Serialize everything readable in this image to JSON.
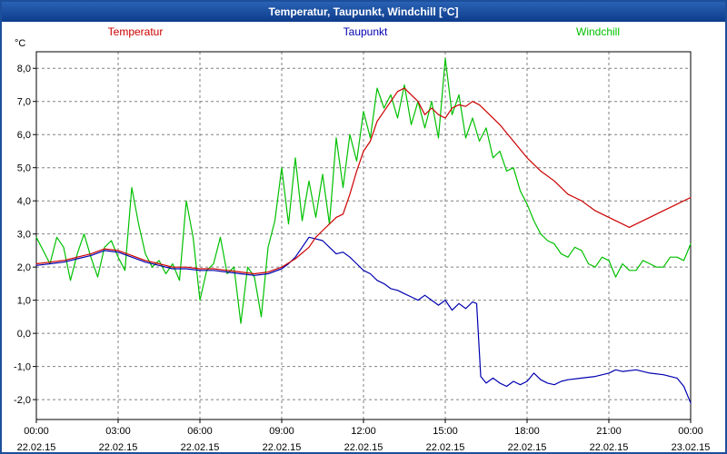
{
  "window": {
    "title": "Temperatur, Taupunkt, Windchill [°C]"
  },
  "colors": {
    "title_bar": "#0d3c8c",
    "frame": "#1c4f9b",
    "temperatur": "#cc0000",
    "taupunkt": "#0000b0",
    "windchill": "#00c000",
    "grid": "#808080",
    "axis": "#000000"
  },
  "legend": {
    "temperatur": "Temperatur",
    "taupunkt": "Taupunkt",
    "windchill": "Windchill"
  },
  "chart_data": {
    "type": "line",
    "title": "Temperatur, Taupunkt, Windchill [°C]",
    "y_unit_label": "°C",
    "ylim": [
      -2.6,
      8.5
    ],
    "grid": true,
    "legend_position": "top",
    "y_ticks": [
      -2,
      -1,
      0,
      1,
      2,
      3,
      4,
      5,
      6,
      7,
      8
    ],
    "y_tick_labels": [
      "-2,0",
      "-1,0",
      "0,0",
      "1,0",
      "2,0",
      "3,0",
      "4,0",
      "5,0",
      "6,0",
      "7,0",
      "8,0"
    ],
    "x_ticks_hours": [
      0,
      3,
      6,
      9,
      12,
      15,
      18,
      21,
      24
    ],
    "x_tick_labels": [
      "00:00",
      "03:00",
      "06:00",
      "09:00",
      "12:00",
      "15:00",
      "18:00",
      "21:00",
      "00:00"
    ],
    "x_date_labels": [
      "22.02.15",
      "22.02.15",
      "22.02.15",
      "22.02.15",
      "22.02.15",
      "22.02.15",
      "22.02.15",
      "22.02.15",
      "23.02.15"
    ],
    "series": [
      {
        "name": "Windchill",
        "color": "#00c000",
        "points": [
          [
            0,
            2.9
          ],
          [
            0.25,
            2.5
          ],
          [
            0.5,
            2.1
          ],
          [
            0.75,
            2.9
          ],
          [
            1,
            2.6
          ],
          [
            1.25,
            1.6
          ],
          [
            1.5,
            2.4
          ],
          [
            1.75,
            3.0
          ],
          [
            2,
            2.3
          ],
          [
            2.25,
            1.7
          ],
          [
            2.5,
            2.6
          ],
          [
            2.75,
            2.8
          ],
          [
            3,
            2.3
          ],
          [
            3.25,
            1.9
          ],
          [
            3.5,
            4.4
          ],
          [
            3.75,
            3.3
          ],
          [
            4,
            2.4
          ],
          [
            4.25,
            2.0
          ],
          [
            4.5,
            2.2
          ],
          [
            4.75,
            1.8
          ],
          [
            5,
            2.1
          ],
          [
            5.25,
            1.6
          ],
          [
            5.5,
            4.0
          ],
          [
            5.75,
            2.9
          ],
          [
            6,
            1.0
          ],
          [
            6.25,
            1.9
          ],
          [
            6.5,
            2.1
          ],
          [
            6.75,
            2.9
          ],
          [
            7,
            1.8
          ],
          [
            7.25,
            2.0
          ],
          [
            7.5,
            0.3
          ],
          [
            7.75,
            2.0
          ],
          [
            8,
            1.7
          ],
          [
            8.25,
            0.5
          ],
          [
            8.5,
            2.6
          ],
          [
            8.75,
            3.4
          ],
          [
            9,
            5.0
          ],
          [
            9.25,
            3.3
          ],
          [
            9.5,
            5.3
          ],
          [
            9.75,
            3.4
          ],
          [
            10,
            4.6
          ],
          [
            10.25,
            3.5
          ],
          [
            10.5,
            4.8
          ],
          [
            10.75,
            3.3
          ],
          [
            11,
            5.9
          ],
          [
            11.25,
            4.4
          ],
          [
            11.5,
            6.0
          ],
          [
            11.75,
            5.2
          ],
          [
            12,
            6.7
          ],
          [
            12.25,
            5.9
          ],
          [
            12.5,
            7.4
          ],
          [
            12.75,
            6.8
          ],
          [
            13,
            7.2
          ],
          [
            13.25,
            6.5
          ],
          [
            13.5,
            7.5
          ],
          [
            13.75,
            6.3
          ],
          [
            14,
            7.0
          ],
          [
            14.25,
            6.2
          ],
          [
            14.5,
            7.0
          ],
          [
            14.75,
            5.9
          ],
          [
            15,
            8.3
          ],
          [
            15.25,
            6.6
          ],
          [
            15.5,
            7.2
          ],
          [
            15.75,
            5.9
          ],
          [
            16,
            6.5
          ],
          [
            16.25,
            5.8
          ],
          [
            16.5,
            6.2
          ],
          [
            16.75,
            5.3
          ],
          [
            17,
            5.5
          ],
          [
            17.25,
            4.9
          ],
          [
            17.5,
            5.0
          ],
          [
            17.75,
            4.3
          ],
          [
            18,
            3.9
          ],
          [
            18.25,
            3.4
          ],
          [
            18.5,
            3.0
          ],
          [
            18.75,
            2.8
          ],
          [
            19,
            2.7
          ],
          [
            19.25,
            2.4
          ],
          [
            19.5,
            2.3
          ],
          [
            19.75,
            2.6
          ],
          [
            20,
            2.5
          ],
          [
            20.25,
            2.1
          ],
          [
            20.5,
            2.0
          ],
          [
            20.75,
            2.3
          ],
          [
            21,
            2.2
          ],
          [
            21.25,
            1.7
          ],
          [
            21.5,
            2.1
          ],
          [
            21.75,
            1.9
          ],
          [
            22,
            1.9
          ],
          [
            22.25,
            2.2
          ],
          [
            22.5,
            2.1
          ],
          [
            22.75,
            2.0
          ],
          [
            23,
            2.0
          ],
          [
            23.25,
            2.3
          ],
          [
            23.5,
            2.3
          ],
          [
            23.75,
            2.2
          ],
          [
            24,
            2.7
          ]
        ]
      },
      {
        "name": "Taupunkt",
        "color": "#0000b0",
        "points": [
          [
            0,
            2.05
          ],
          [
            0.5,
            2.1
          ],
          [
            1,
            2.15
          ],
          [
            1.5,
            2.25
          ],
          [
            2,
            2.35
          ],
          [
            2.5,
            2.5
          ],
          [
            3,
            2.45
          ],
          [
            3.5,
            2.3
          ],
          [
            4,
            2.15
          ],
          [
            4.5,
            2.05
          ],
          [
            5,
            1.95
          ],
          [
            5.5,
            1.95
          ],
          [
            6,
            1.9
          ],
          [
            6.5,
            1.9
          ],
          [
            7,
            1.85
          ],
          [
            7.5,
            1.8
          ],
          [
            8,
            1.75
          ],
          [
            8.5,
            1.8
          ],
          [
            9,
            1.95
          ],
          [
            9.25,
            2.1
          ],
          [
            9.5,
            2.3
          ],
          [
            9.75,
            2.6
          ],
          [
            10,
            2.9
          ],
          [
            10.25,
            2.85
          ],
          [
            10.5,
            2.8
          ],
          [
            10.75,
            2.6
          ],
          [
            11,
            2.4
          ],
          [
            11.25,
            2.45
          ],
          [
            11.5,
            2.3
          ],
          [
            11.75,
            2.1
          ],
          [
            12,
            1.9
          ],
          [
            12.25,
            1.8
          ],
          [
            12.5,
            1.6
          ],
          [
            12.75,
            1.5
          ],
          [
            13,
            1.35
          ],
          [
            13.25,
            1.3
          ],
          [
            13.5,
            1.2
          ],
          [
            13.75,
            1.1
          ],
          [
            14,
            1.0
          ],
          [
            14.25,
            1.15
          ],
          [
            14.5,
            1.0
          ],
          [
            14.75,
            0.85
          ],
          [
            15,
            1.0
          ],
          [
            15.25,
            0.7
          ],
          [
            15.5,
            0.9
          ],
          [
            15.75,
            0.75
          ],
          [
            16,
            0.95
          ],
          [
            16.15,
            0.9
          ],
          [
            16.3,
            -1.3
          ],
          [
            16.5,
            -1.5
          ],
          [
            16.75,
            -1.35
          ],
          [
            17,
            -1.5
          ],
          [
            17.25,
            -1.6
          ],
          [
            17.5,
            -1.45
          ],
          [
            17.75,
            -1.55
          ],
          [
            18,
            -1.45
          ],
          [
            18.25,
            -1.2
          ],
          [
            18.5,
            -1.4
          ],
          [
            18.75,
            -1.5
          ],
          [
            19,
            -1.55
          ],
          [
            19.25,
            -1.45
          ],
          [
            19.5,
            -1.4
          ],
          [
            20,
            -1.35
          ],
          [
            20.5,
            -1.3
          ],
          [
            21,
            -1.2
          ],
          [
            21.25,
            -1.1
          ],
          [
            21.5,
            -1.15
          ],
          [
            22,
            -1.1
          ],
          [
            22.5,
            -1.2
          ],
          [
            23,
            -1.25
          ],
          [
            23.5,
            -1.35
          ],
          [
            23.75,
            -1.6
          ],
          [
            24,
            -2.1
          ]
        ]
      },
      {
        "name": "Temperatur",
        "color": "#cc0000",
        "points": [
          [
            0,
            2.1
          ],
          [
            0.5,
            2.15
          ],
          [
            1,
            2.2
          ],
          [
            1.5,
            2.3
          ],
          [
            2,
            2.4
          ],
          [
            2.5,
            2.55
          ],
          [
            3,
            2.5
          ],
          [
            3.5,
            2.35
          ],
          [
            4,
            2.2
          ],
          [
            4.5,
            2.1
          ],
          [
            5,
            2.0
          ],
          [
            5.5,
            2.0
          ],
          [
            6,
            1.95
          ],
          [
            6.5,
            1.95
          ],
          [
            7,
            1.9
          ],
          [
            7.5,
            1.85
          ],
          [
            8,
            1.8
          ],
          [
            8.5,
            1.85
          ],
          [
            9,
            2.0
          ],
          [
            9.5,
            2.25
          ],
          [
            10,
            2.6
          ],
          [
            10.25,
            2.9
          ],
          [
            10.5,
            3.1
          ],
          [
            10.75,
            3.3
          ],
          [
            11,
            3.5
          ],
          [
            11.25,
            3.6
          ],
          [
            11.5,
            4.2
          ],
          [
            11.75,
            4.9
          ],
          [
            12,
            5.5
          ],
          [
            12.25,
            5.8
          ],
          [
            12.5,
            6.4
          ],
          [
            12.75,
            6.7
          ],
          [
            13,
            7.0
          ],
          [
            13.25,
            7.3
          ],
          [
            13.5,
            7.4
          ],
          [
            13.75,
            7.2
          ],
          [
            14,
            7.0
          ],
          [
            14.25,
            6.6
          ],
          [
            14.5,
            6.8
          ],
          [
            14.75,
            6.6
          ],
          [
            15,
            6.5
          ],
          [
            15.25,
            6.8
          ],
          [
            15.5,
            6.9
          ],
          [
            15.75,
            6.85
          ],
          [
            16,
            7.0
          ],
          [
            16.25,
            6.9
          ],
          [
            16.5,
            6.7
          ],
          [
            17,
            6.3
          ],
          [
            17.5,
            5.8
          ],
          [
            18,
            5.3
          ],
          [
            18.5,
            4.9
          ],
          [
            19,
            4.6
          ],
          [
            19.5,
            4.2
          ],
          [
            20,
            4.0
          ],
          [
            20.5,
            3.7
          ],
          [
            21,
            3.5
          ],
          [
            21.25,
            3.4
          ],
          [
            21.5,
            3.3
          ],
          [
            21.75,
            3.2
          ],
          [
            22,
            3.3
          ],
          [
            22.5,
            3.5
          ],
          [
            23,
            3.7
          ],
          [
            23.5,
            3.9
          ],
          [
            24,
            4.1
          ]
        ]
      }
    ]
  }
}
